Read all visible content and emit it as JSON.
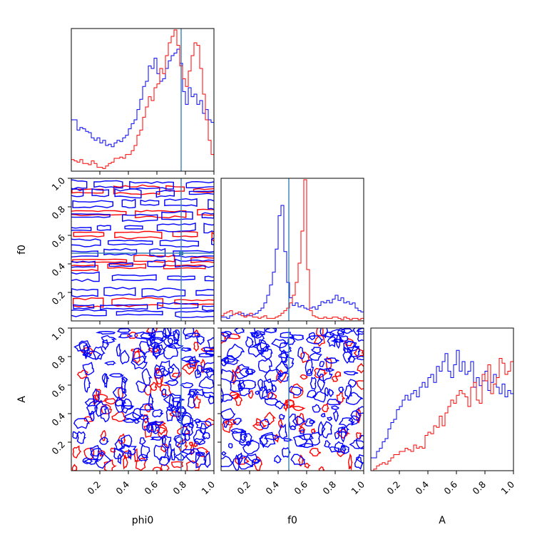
{
  "chart_data": {
    "type": "corner",
    "parameters": [
      "phi0",
      "f0",
      "A"
    ],
    "ranges": [
      [
        0,
        1
      ],
      [
        0,
        1
      ],
      [
        0,
        1
      ]
    ],
    "tick_labels": [
      "0.2",
      "0.4",
      "0.6",
      "0.8",
      "1.0"
    ],
    "truths": {
      "phi0": 0.77,
      "f0": 0.475
    },
    "colors": {
      "series_a": "#0000ff",
      "series_b": "#ff0000",
      "truth": "#3a7fb5"
    },
    "histograms": {
      "phi0": {
        "blue": [
          0.4,
          0.4,
          0.32,
          0.34,
          0.33,
          0.31,
          0.3,
          0.26,
          0.24,
          0.26,
          0.22,
          0.24,
          0.2,
          0.21,
          0.19,
          0.22,
          0.24,
          0.23,
          0.26,
          0.28,
          0.33,
          0.37,
          0.4,
          0.48,
          0.56,
          0.66,
          0.7,
          0.82,
          0.8,
          0.88,
          0.76,
          0.7,
          0.72,
          0.8,
          0.86,
          0.9,
          0.92,
          0.95,
          0.84,
          0.62,
          0.52,
          0.65,
          0.58,
          0.6,
          0.52,
          0.55,
          0.45,
          0.48,
          0.4,
          0.38
        ],
        "red": [
          0.09,
          0.08,
          0.07,
          0.09,
          0.06,
          0.06,
          0.05,
          0.08,
          0.06,
          0.03,
          0.03,
          0.02,
          0.04,
          0.06,
          0.07,
          0.1,
          0.1,
          0.11,
          0.1,
          0.13,
          0.13,
          0.16,
          0.2,
          0.28,
          0.32,
          0.42,
          0.5,
          0.58,
          0.55,
          0.65,
          0.68,
          0.8,
          0.76,
          0.9,
          1.0,
          1.05,
          1.1,
          0.98,
          0.82,
          0.72,
          0.66,
          0.78,
          0.9,
          1.0,
          0.98,
          0.8,
          0.6,
          0.4,
          0.24,
          0.13
        ]
      },
      "f0": {
        "blue": [
          0.03,
          0.03,
          0.02,
          0.04,
          0.05,
          0.06,
          0.05,
          0.06,
          0.04,
          0.05,
          0.04,
          0.05,
          0.06,
          0.08,
          0.1,
          0.14,
          0.2,
          0.28,
          0.38,
          0.56,
          0.82,
          0.9,
          0.54,
          0.3,
          0.18,
          0.12,
          0.14,
          0.11,
          0.12,
          0.1,
          0.09,
          0.1,
          0.11,
          0.09,
          0.12,
          0.15,
          0.14,
          0.16,
          0.14,
          0.17,
          0.2,
          0.16,
          0.18,
          0.14,
          0.15,
          0.13,
          0.14,
          0.1,
          0.08,
          0.07
        ],
        "red": [
          0.04,
          0.06,
          0.07,
          0.08,
          0.05,
          0.06,
          0.07,
          0.04,
          0.03,
          0.04,
          0.06,
          0.03,
          0.03,
          0.02,
          0.03,
          0.04,
          0.02,
          0.02,
          0.02,
          0.03,
          0.04,
          0.06,
          0.08,
          0.1,
          0.14,
          0.2,
          0.3,
          0.45,
          0.7,
          1.1,
          0.4,
          0.08,
          0.04,
          0.03,
          0.02,
          0.02,
          0.03,
          0.02,
          0.02,
          0.03,
          0.03,
          0.02,
          0.01,
          0.03,
          0.02,
          0.01,
          0.02,
          0.02,
          0.01,
          0.02
        ]
      },
      "A": {
        "blue": [
          0.08,
          0.08,
          0.12,
          0.14,
          0.18,
          0.2,
          0.26,
          0.3,
          0.32,
          0.38,
          0.4,
          0.44,
          0.47,
          0.44,
          0.48,
          0.5,
          0.46,
          0.52,
          0.55,
          0.52,
          0.58,
          0.6,
          0.55,
          0.65,
          0.62,
          0.68,
          0.73,
          0.62,
          0.58,
          0.66,
          0.75,
          0.62,
          0.68,
          0.6,
          0.62,
          0.68,
          0.52,
          0.58,
          0.53,
          0.56,
          0.62,
          0.5,
          0.55,
          0.6,
          0.52,
          0.48,
          0.54,
          0.46,
          0.5,
          0.48
        ],
        "red": [
          0.0,
          0.01,
          0.03,
          0.04,
          0.05,
          0.04,
          0.06,
          0.08,
          0.1,
          0.1,
          0.12,
          0.12,
          0.14,
          0.13,
          0.12,
          0.16,
          0.14,
          0.15,
          0.14,
          0.22,
          0.24,
          0.23,
          0.28,
          0.27,
          0.34,
          0.28,
          0.36,
          0.4,
          0.44,
          0.42,
          0.47,
          0.5,
          0.48,
          0.46,
          0.4,
          0.52,
          0.55,
          0.44,
          0.42,
          0.6,
          0.56,
          0.66,
          0.48,
          0.54,
          0.58,
          0.7,
          0.67,
          0.6,
          0.62,
          0.68
        ]
      }
    },
    "contours": {
      "f0_vs_phi0": {
        "red_bands_f0": [
          0.125,
          0.375,
          0.425,
          0.6,
          0.75,
          0.92
        ],
        "blue_bands_f0": [
          0.05,
          0.1,
          0.2,
          0.3,
          0.4,
          0.475,
          0.55,
          0.65,
          0.73,
          0.82,
          0.9,
          0.96
        ]
      },
      "A_vs_phi0": {},
      "A_vs_f0": {}
    }
  }
}
